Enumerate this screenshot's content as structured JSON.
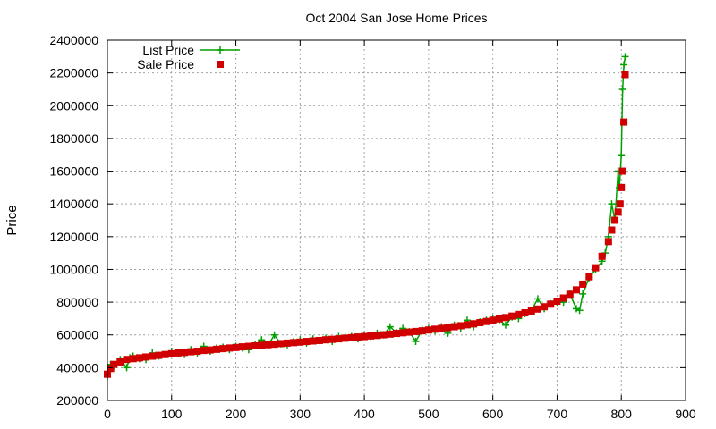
{
  "chart_data": {
    "type": "scatter",
    "title": "Oct 2004 San Jose Home Prices",
    "xlabel": "",
    "ylabel": "Price",
    "xlim": [
      0,
      900
    ],
    "ylim": [
      200000,
      2400000
    ],
    "x_ticks": [
      0,
      100,
      200,
      300,
      400,
      500,
      600,
      700,
      800,
      900
    ],
    "y_ticks": [
      200000,
      400000,
      600000,
      800000,
      1000000,
      1200000,
      1400000,
      1600000,
      1800000,
      2000000,
      2200000,
      2400000
    ],
    "x_tick_labels": [
      "0",
      "100",
      "200",
      "300",
      "400",
      "500",
      "600",
      "700",
      "800",
      "900"
    ],
    "y_tick_labels": [
      "200000",
      "400000",
      "600000",
      "800000",
      "1000000",
      "1200000",
      "1400000",
      "1600000",
      "1800000",
      "2000000",
      "2200000",
      "2400000"
    ],
    "grid": true,
    "legend_position": "top-left",
    "series": [
      {
        "name": "List Price",
        "style": "line-with-plus-markers",
        "color": "#00a000",
        "x": [
          0,
          5,
          10,
          20,
          30,
          35,
          40,
          50,
          60,
          70,
          80,
          90,
          100,
          110,
          120,
          130,
          140,
          150,
          160,
          170,
          180,
          190,
          200,
          210,
          220,
          230,
          240,
          250,
          260,
          270,
          280,
          290,
          300,
          310,
          320,
          330,
          340,
          350,
          360,
          370,
          380,
          390,
          400,
          410,
          420,
          430,
          440,
          450,
          460,
          470,
          480,
          490,
          500,
          510,
          520,
          530,
          540,
          550,
          560,
          570,
          580,
          590,
          600,
          610,
          620,
          630,
          640,
          650,
          660,
          670,
          680,
          690,
          700,
          710,
          720,
          730,
          735,
          740,
          750,
          760,
          770,
          775,
          780,
          785,
          790,
          795,
          797,
          800,
          802,
          804,
          806
        ],
        "y": [
          350000,
          420000,
          410000,
          450000,
          400000,
          460000,
          470000,
          455000,
          450000,
          490000,
          470000,
          480000,
          500000,
          485000,
          480000,
          510000,
          490000,
          530000,
          500000,
          520000,
          525000,
          510000,
          530000,
          520000,
          510000,
          540000,
          570000,
          535000,
          600000,
          545000,
          540000,
          560000,
          570000,
          550000,
          575000,
          565000,
          580000,
          560000,
          590000,
          585000,
          590000,
          575000,
          600000,
          590000,
          610000,
          600000,
          650000,
          615000,
          640000,
          620000,
          560000,
          630000,
          640000,
          625000,
          650000,
          610000,
          660000,
          640000,
          690000,
          650000,
          680000,
          690000,
          700000,
          690000,
          660000,
          710000,
          700000,
          730000,
          750000,
          820000,
          760000,
          790000,
          800000,
          800000,
          850000,
          760000,
          750000,
          850000,
          950000,
          1000000,
          1050000,
          1100000,
          1200000,
          1400000,
          1300000,
          1600000,
          1500000,
          1700000,
          2100000,
          2250000,
          2300000
        ]
      },
      {
        "name": "Sale Price",
        "style": "square-markers",
        "color": "#d00000",
        "x": [
          0,
          5,
          10,
          20,
          30,
          40,
          50,
          60,
          70,
          80,
          90,
          100,
          110,
          120,
          130,
          140,
          150,
          160,
          170,
          180,
          190,
          200,
          210,
          220,
          230,
          240,
          250,
          260,
          270,
          280,
          290,
          300,
          310,
          320,
          330,
          340,
          350,
          360,
          370,
          380,
          390,
          400,
          410,
          420,
          430,
          440,
          450,
          460,
          470,
          480,
          490,
          500,
          510,
          520,
          530,
          540,
          550,
          560,
          570,
          580,
          590,
          600,
          610,
          620,
          630,
          640,
          650,
          660,
          670,
          680,
          690,
          700,
          710,
          720,
          730,
          740,
          750,
          760,
          770,
          780,
          785,
          790,
          795,
          798,
          800,
          802,
          804,
          806
        ],
        "y": [
          360000,
          395000,
          420000,
          435000,
          450000,
          455000,
          460000,
          465000,
          470000,
          475000,
          480000,
          485000,
          490000,
          493000,
          497000,
          500000,
          505000,
          508000,
          512000,
          516000,
          520000,
          523000,
          527000,
          530000,
          533000,
          537000,
          540000,
          543000,
          547000,
          550000,
          553000,
          556000,
          560000,
          563000,
          566000,
          570000,
          573000,
          576000,
          580000,
          583000,
          587000,
          590000,
          594000,
          597000,
          601000,
          605000,
          609000,
          613000,
          617000,
          621000,
          625000,
          630000,
          635000,
          640000,
          645000,
          650000,
          656000,
          662000,
          668000,
          675000,
          682000,
          690000,
          698000,
          706000,
          715000,
          725000,
          735000,
          746000,
          758000,
          772000,
          788000,
          806000,
          825000,
          848000,
          875000,
          910000,
          955000,
          1010000,
          1080000,
          1170000,
          1240000,
          1300000,
          1350000,
          1400000,
          1500000,
          1600000,
          1900000,
          2190000
        ]
      }
    ]
  }
}
